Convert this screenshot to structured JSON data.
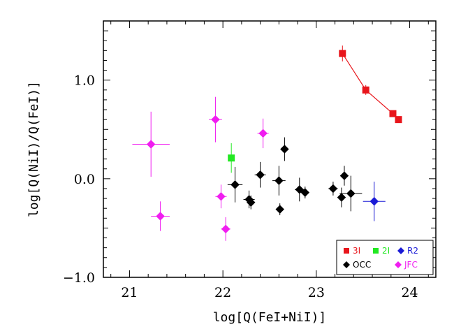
{
  "chart_data": {
    "type": "scatter",
    "xlabel": "log[Q(FeI+NiI)]",
    "ylabel": "log[Q(NiI)/Q(FeI)]",
    "xlim": [
      20.72,
      24.28
    ],
    "ylim": [
      -1.0,
      1.6
    ],
    "x_ticks": [
      "21",
      "22",
      "23",
      "24"
    ],
    "y_ticks": [
      "1.0",
      "0.0",
      "−1.0"
    ],
    "legend_position": "bottom-right",
    "series": [
      {
        "name": "3I",
        "color": "#e8151b",
        "marker": "square",
        "connected": true,
        "points": [
          {
            "x": 23.28,
            "y": 1.27,
            "xerr": 0.0,
            "yerr": 0.08
          },
          {
            "x": 23.53,
            "y": 0.9,
            "xerr": 0.0,
            "yerr": 0.05
          },
          {
            "x": 23.82,
            "y": 0.66,
            "xerr": 0.0,
            "yerr": 0.03
          },
          {
            "x": 23.88,
            "y": 0.6,
            "xerr": 0.0,
            "yerr": 0.03
          }
        ]
      },
      {
        "name": "2I",
        "color": "#22e822",
        "marker": "square",
        "connected": false,
        "points": [
          {
            "x": 22.09,
            "y": 0.21,
            "xerr": 0.03,
            "yerr": 0.15
          }
        ]
      },
      {
        "name": "R2",
        "color": "#1a1ad6",
        "marker": "diamond",
        "connected": false,
        "points": [
          {
            "x": 23.62,
            "y": -0.23,
            "xerr": 0.12,
            "yerr": 0.2
          }
        ]
      },
      {
        "name": "OCC",
        "color": "#000000",
        "marker": "diamond",
        "connected": false,
        "points": [
          {
            "x": 22.13,
            "y": -0.06,
            "xerr": 0.08,
            "yerr": 0.18
          },
          {
            "x": 22.28,
            "y": -0.21,
            "xerr": 0.06,
            "yerr": 0.09
          },
          {
            "x": 22.3,
            "y": -0.24,
            "xerr": 0.04,
            "yerr": 0.07
          },
          {
            "x": 22.4,
            "y": 0.04,
            "xerr": 0.06,
            "yerr": 0.13
          },
          {
            "x": 22.6,
            "y": -0.02,
            "xerr": 0.07,
            "yerr": 0.15
          },
          {
            "x": 22.61,
            "y": -0.31,
            "xerr": 0.03,
            "yerr": 0.06
          },
          {
            "x": 22.66,
            "y": 0.3,
            "xerr": 0.03,
            "yerr": 0.12
          },
          {
            "x": 22.82,
            "y": -0.11,
            "xerr": 0.05,
            "yerr": 0.12
          },
          {
            "x": 22.88,
            "y": -0.14,
            "xerr": 0.04,
            "yerr": 0.06
          },
          {
            "x": 23.18,
            "y": -0.1,
            "xerr": 0.05,
            "yerr": 0.07
          },
          {
            "x": 23.27,
            "y": -0.19,
            "xerr": 0.04,
            "yerr": 0.1
          },
          {
            "x": 23.3,
            "y": 0.03,
            "xerr": 0.04,
            "yerr": 0.1
          },
          {
            "x": 23.37,
            "y": -0.15,
            "xerr": 0.12,
            "yerr": 0.18
          }
        ]
      },
      {
        "name": "JFC",
        "color": "#f01df0",
        "marker": "diamond",
        "connected": false,
        "points": [
          {
            "x": 21.23,
            "y": 0.35,
            "xerr": 0.2,
            "yerr": 0.33
          },
          {
            "x": 21.33,
            "y": -0.38,
            "xerr": 0.1,
            "yerr": 0.15
          },
          {
            "x": 21.92,
            "y": 0.6,
            "xerr": 0.07,
            "yerr": 0.23
          },
          {
            "x": 21.98,
            "y": -0.18,
            "xerr": 0.06,
            "yerr": 0.12
          },
          {
            "x": 22.03,
            "y": -0.51,
            "xerr": 0.05,
            "yerr": 0.12
          },
          {
            "x": 22.43,
            "y": 0.46,
            "xerr": 0.06,
            "yerr": 0.15
          }
        ]
      }
    ]
  }
}
